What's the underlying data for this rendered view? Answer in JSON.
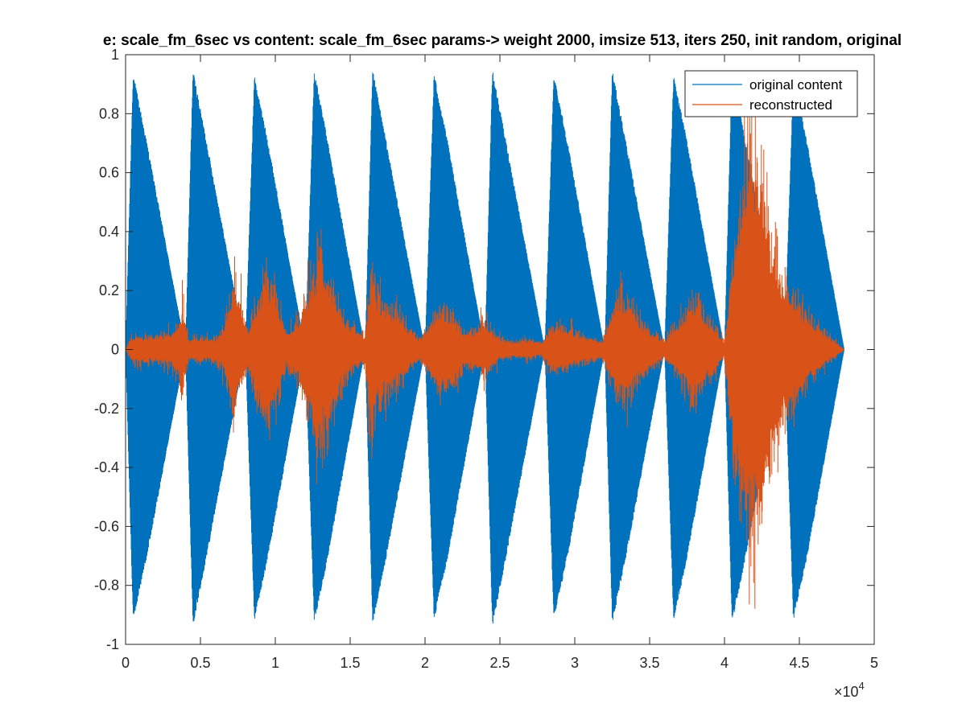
{
  "chart_data": {
    "type": "line",
    "title": "e: scale_fm_6sec vs content: scale_fm_6sec  params-> weight 2000, imsize 513, iters 250, init random, original",
    "xlabel": "",
    "ylabel": "",
    "xlim": [
      0,
      50000
    ],
    "ylim": [
      -1,
      1
    ],
    "x_ticks": [
      0,
      5000,
      10000,
      15000,
      20000,
      25000,
      30000,
      35000,
      40000,
      45000,
      50000
    ],
    "x_tick_labels": [
      "0",
      "0.5",
      "1",
      "1.5",
      "2",
      "2.5",
      "3",
      "3.5",
      "4",
      "4.5",
      "5"
    ],
    "x_exponent_label": "×10",
    "x_exponent_power": "4",
    "y_ticks": [
      -1,
      -0.8,
      -0.6,
      -0.4,
      -0.2,
      0,
      0.2,
      0.4,
      0.6,
      0.8,
      1
    ],
    "y_tick_labels": [
      "-1",
      "-0.8",
      "-0.6",
      "-0.4",
      "-0.2",
      "0",
      "0.2",
      "0.4",
      "0.6",
      "0.8",
      "1"
    ],
    "grid": false,
    "legend_position": "top-right",
    "series": [
      {
        "name": "original content",
        "color": "#0072BD",
        "description_envelope": "12 repeated decaying-attack notes over 48000 samples",
        "envelope_x": [
          0,
          500,
          1400,
          4000,
          4500,
          5400,
          8000,
          8600,
          9500,
          12000,
          12600,
          13500,
          16000,
          16500,
          17400,
          20000,
          20600,
          21500,
          24000,
          24500,
          25400,
          28000,
          28600,
          29500,
          32000,
          32500,
          33400,
          36000,
          36600,
          37500,
          40000,
          40500,
          41400,
          44000,
          44600,
          45500,
          48000
        ],
        "envelope_max": [
          0,
          0.94,
          0.71,
          0,
          0.95,
          0.71,
          0,
          0.93,
          0.71,
          0,
          0.95,
          0.71,
          0,
          0.95,
          0.71,
          0,
          0.94,
          0.71,
          0,
          0.95,
          0.71,
          0,
          0.94,
          0.71,
          0,
          0.95,
          0.71,
          0,
          0.93,
          0.71,
          0,
          0.95,
          0.71,
          0,
          0.93,
          0.71,
          0
        ],
        "envelope_min": [
          0,
          -0.92,
          -0.71,
          0,
          -0.94,
          -0.71,
          0,
          -0.92,
          -0.71,
          0,
          -0.93,
          -0.71,
          0,
          -0.93,
          -0.71,
          0,
          -0.92,
          -0.71,
          0,
          -0.94,
          -0.71,
          0,
          -0.92,
          -0.71,
          0,
          -0.93,
          -0.71,
          0,
          -0.92,
          -0.71,
          0,
          -0.93,
          -0.71,
          0,
          -0.92,
          -0.71,
          0
        ]
      },
      {
        "name": "reconstructed",
        "color": "#D95319",
        "envelope_x": [
          0,
          400,
          1000,
          2000,
          3000,
          3500,
          3800,
          4200,
          5000,
          6000,
          6500,
          7300,
          7700,
          8200,
          9300,
          10000,
          10700,
          11500,
          12300,
          12800,
          13300,
          14000,
          14600,
          15300,
          16000,
          16400,
          16800,
          17400,
          18200,
          19000,
          19700,
          20200,
          20800,
          21500,
          22000,
          22800,
          23400,
          23900,
          24400,
          25000,
          26000,
          27000,
          27800,
          28300,
          29000,
          30000,
          31000,
          31800,
          32300,
          32900,
          33500,
          34300,
          35000,
          35700,
          36000,
          36500,
          37500,
          38000,
          38800,
          39500,
          40000,
          40600,
          41300,
          41800,
          42200,
          42600,
          43200,
          43800,
          44400,
          45000,
          45600,
          46300,
          47000,
          47600,
          48000
        ],
        "envelope_max": [
          0,
          0.06,
          0.07,
          0.06,
          0.08,
          0.14,
          0.2,
          0.05,
          0.06,
          0.06,
          0.1,
          0.35,
          0.18,
          0.1,
          0.35,
          0.3,
          0.08,
          0.15,
          0.3,
          0.43,
          0.4,
          0.3,
          0.15,
          0.1,
          0.07,
          0.4,
          0.28,
          0.22,
          0.18,
          0.1,
          0.05,
          0.12,
          0.2,
          0.2,
          0.14,
          0.08,
          0.1,
          0.14,
          0.1,
          0.05,
          0.04,
          0.05,
          0.03,
          0.1,
          0.12,
          0.08,
          0.06,
          0.04,
          0.12,
          0.26,
          0.25,
          0.15,
          0.1,
          0.06,
          0.04,
          0.1,
          0.2,
          0.25,
          0.16,
          0.1,
          0.04,
          0.5,
          0.9,
          0.96,
          0.92,
          0.8,
          0.5,
          0.35,
          0.3,
          0.22,
          0.16,
          0.12,
          0.06,
          0.03,
          0
        ],
        "envelope_min": [
          0,
          -0.06,
          -0.07,
          -0.06,
          -0.08,
          -0.14,
          -0.2,
          -0.05,
          -0.06,
          -0.06,
          -0.1,
          -0.35,
          -0.18,
          -0.1,
          -0.38,
          -0.3,
          -0.08,
          -0.15,
          -0.3,
          -0.45,
          -0.42,
          -0.3,
          -0.15,
          -0.1,
          -0.07,
          -0.48,
          -0.3,
          -0.22,
          -0.18,
          -0.1,
          -0.05,
          -0.12,
          -0.2,
          -0.22,
          -0.14,
          -0.08,
          -0.1,
          -0.14,
          -0.1,
          -0.05,
          -0.04,
          -0.05,
          -0.03,
          -0.1,
          -0.12,
          -0.08,
          -0.06,
          -0.04,
          -0.12,
          -0.26,
          -0.25,
          -0.15,
          -0.1,
          -0.06,
          -0.04,
          -0.1,
          -0.2,
          -0.25,
          -0.16,
          -0.1,
          -0.04,
          -0.55,
          -0.85,
          -0.95,
          -0.9,
          -0.8,
          -0.55,
          -0.35,
          -0.3,
          -0.22,
          -0.16,
          -0.12,
          -0.06,
          -0.03,
          0
        ]
      }
    ]
  }
}
